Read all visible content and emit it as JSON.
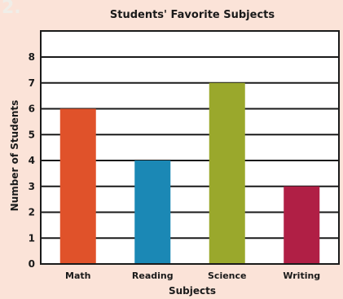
{
  "problem_number": "2.",
  "colors": {
    "background": "#fbe3d8",
    "plot_background": "#ffffff",
    "grid": "#1a1a1a",
    "text": "#1a1a1a",
    "problem_number": "#f0eee8"
  },
  "chart_data": {
    "type": "bar",
    "title": "Students' Favorite Subjects",
    "xlabel": "Subjects",
    "ylabel": "Number of Students",
    "categories": [
      "Math",
      "Reading",
      "Science",
      "Writing"
    ],
    "values": [
      6,
      4,
      7,
      3
    ],
    "bar_colors": [
      "#e0522a",
      "#1b88b5",
      "#9aa82c",
      "#b01f45"
    ],
    "ylim": [
      0,
      8
    ],
    "yticks": [
      "0",
      "1",
      "2",
      "3",
      "4",
      "5",
      "6",
      "7",
      "8"
    ],
    "grid": true,
    "legend": "none"
  }
}
